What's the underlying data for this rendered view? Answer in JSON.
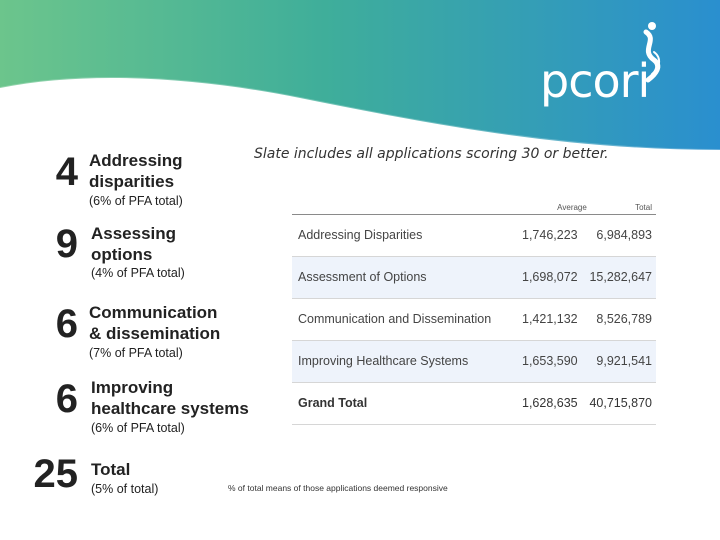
{
  "brand": {
    "logo_text": "pcori",
    "colors": {
      "banner_green": "#5fc08a",
      "banner_blue": "#2a8fcf"
    }
  },
  "slate_note": "Slate includes all applications scoring 30 or better.",
  "items": [
    {
      "number": "4",
      "label_line1": "Addressing",
      "label_line2": "disparities",
      "pct": "(6% of PFA total)"
    },
    {
      "number": "9",
      "label_line1": "Assessing",
      "label_line2": "options",
      "pct": "(4% of PFA total)"
    },
    {
      "number": "6",
      "label_line1": "Communication",
      "label_line2": "& dissemination",
      "pct": "(7% of PFA total)"
    },
    {
      "number": "6",
      "label_line1": "Improving",
      "label_line2": "healthcare systems",
      "pct": "(6% of PFA total)"
    },
    {
      "number": "25",
      "label_line1": "Total",
      "label_line2": "",
      "pct": "(5% of total)"
    }
  ],
  "table": {
    "headers": {
      "average": "Average",
      "total": "Total"
    },
    "rows": [
      {
        "name": "Addressing Disparities",
        "average": "1,746,223",
        "total": "6,984,893"
      },
      {
        "name": "Assessment of Options",
        "average": "1,698,072",
        "total": "15,282,647"
      },
      {
        "name": "Communication and Dissemination",
        "average": "1,421,132",
        "total": "8,526,789"
      },
      {
        "name": "Improving Healthcare Systems",
        "average": "1,653,590",
        "total": "9,921,541"
      }
    ],
    "grand": {
      "name": "Grand Total",
      "average": "1,628,635",
      "total": "40,715,870"
    }
  },
  "footnote": "% of total means of those applications deemed responsive"
}
